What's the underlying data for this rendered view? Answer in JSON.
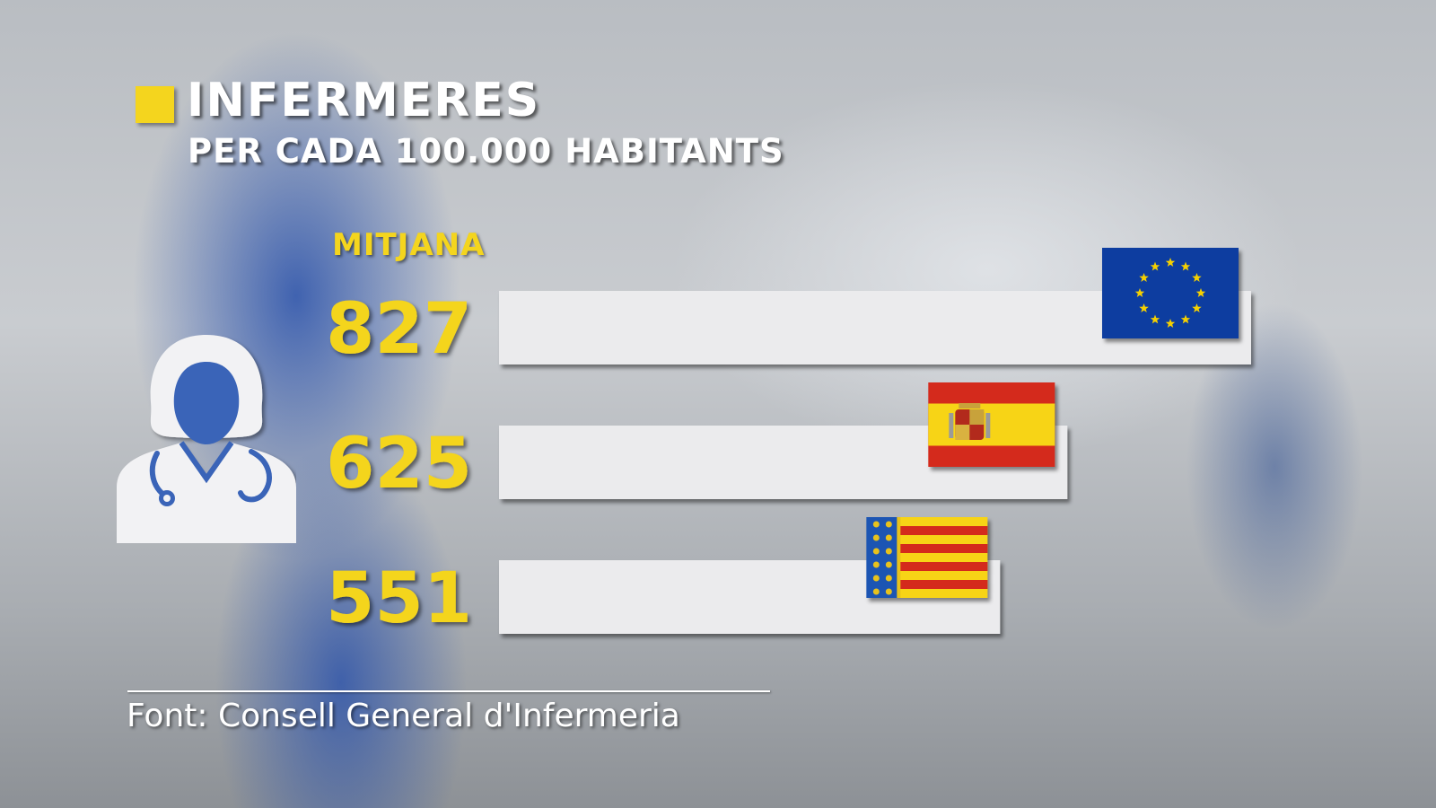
{
  "chart_data": {
    "type": "bar",
    "orientation": "horizontal",
    "title": "INFERMERES",
    "subtitle": "PER CADA 100.000 HABITANTS",
    "annotation": "MITJANA",
    "categories": [
      "",
      "",
      ""
    ],
    "values": [
      827,
      625,
      551
    ],
    "value_labels": [
      "827",
      "625",
      "551"
    ],
    "bar_icons": [
      "eu-flag-icon",
      "spain-flag-icon",
      "valencia-flag-icon"
    ],
    "xlim": [
      0,
      827
    ],
    "grid": false,
    "legend": "none",
    "source": "Font: Consell General d'Infermeria"
  },
  "colors": {
    "accent": "#f4d51e",
    "bar": "#ebebed",
    "eu_blue": "#0d3ea0",
    "spain_red": "#d42a1e",
    "spain_yellow": "#f7d417",
    "valencia_blue": "#1f55b3"
  },
  "icons": {
    "side": "nurse-icon"
  }
}
